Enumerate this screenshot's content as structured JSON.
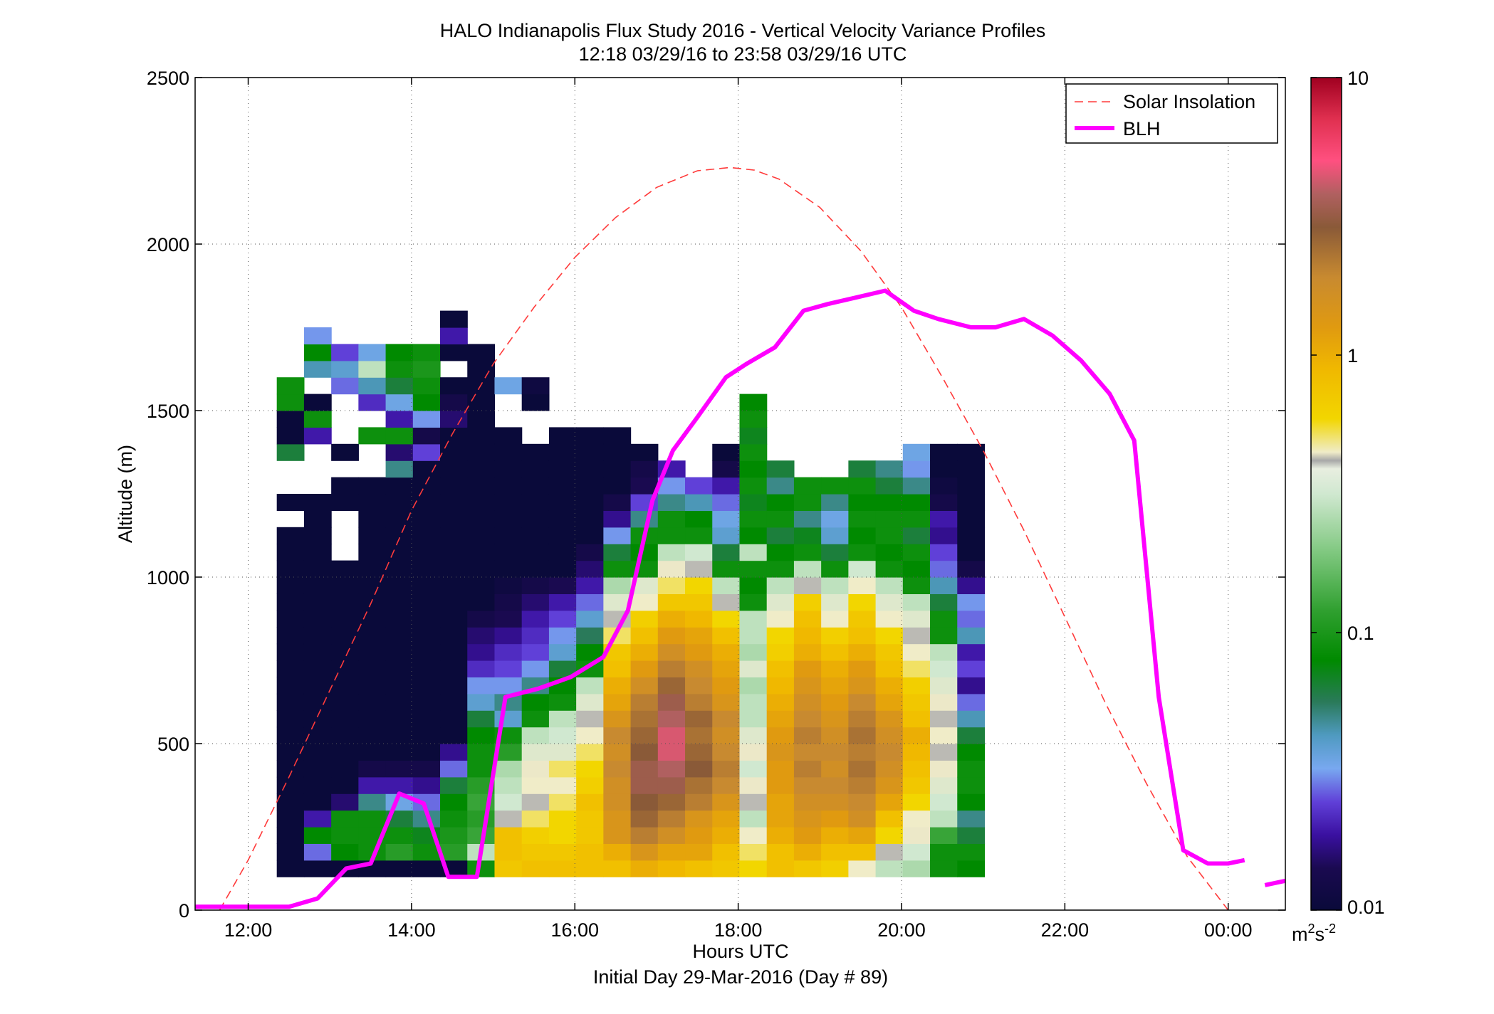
{
  "chart_data": {
    "type": "heatmap",
    "title": "HALO Indianapolis Flux Study 2016 - Vertical Velocity Variance Profiles",
    "subtitle": "12:18 03/29/16 to 23:58 03/29/16  UTC",
    "xlabel": "Hours UTC",
    "xlabel2": "Initial Day 29-Mar-2016 (Day # 89)",
    "ylabel": "Altitude (m)",
    "x_ticks": [
      "12:00",
      "14:00",
      "16:00",
      "18:00",
      "20:00",
      "22:00",
      "00:00"
    ],
    "x_tick_hours": [
      12,
      14,
      16,
      18,
      20,
      22,
      24
    ],
    "xlim_hours": [
      11.35,
      24.7
    ],
    "ylim": [
      0,
      2500
    ],
    "y_ticks": [
      0,
      500,
      1000,
      1500,
      2000,
      2500
    ],
    "grid": true,
    "colorbar": {
      "scale": "log",
      "min": 0.01,
      "max": 10,
      "ticks": [
        0.01,
        0.1,
        1,
        10
      ],
      "tick_labels": [
        "0.01",
        "0.1",
        "1",
        "10"
      ],
      "unit_base": "m",
      "unit_sup1": "2",
      "unit_mid": "s",
      "unit_sup2": "-2"
    },
    "legend": {
      "position": "top-right",
      "entries": [
        "Solar Insolation",
        "BLH"
      ]
    },
    "heatmap": {
      "x_start_hour": 12.35,
      "x_step_hour": 0.3333,
      "y_start_m": 100,
      "y_step_m": 50,
      "log10_variance_columns": [
        [
          -2,
          -2,
          -2,
          -2,
          -2,
          -2,
          -2,
          -2,
          -2,
          -2,
          -2,
          -2,
          -2,
          -2,
          -2,
          -2,
          -2,
          -2,
          -2,
          -2,
          -2,
          null,
          -2,
          null,
          null,
          -1.2,
          -2,
          -2,
          -1.05,
          -1.05
        ],
        [
          -2,
          -1.55,
          -1.1,
          -1.7,
          -2,
          -2,
          -2,
          -2,
          -2,
          -2,
          -2,
          -2,
          -2,
          -2,
          -2,
          -2,
          -2,
          -2,
          -2,
          -2,
          -2,
          -2,
          -2,
          null,
          null,
          null,
          -1.7,
          -1.05,
          -2,
          null,
          -1.35,
          -1.1,
          -1.5
        ],
        [
          -2,
          -1.1,
          -1.05,
          -1.05,
          -1.8,
          -2,
          -2,
          -2,
          -2,
          -2,
          -2,
          -2,
          -2,
          -2,
          -2,
          -2,
          -2,
          -2,
          -2,
          null,
          null,
          null,
          -2,
          -2,
          null,
          -2,
          null,
          null,
          null,
          -1.55,
          -1.4,
          -1.6
        ],
        [
          -2,
          -1.05,
          -1.05,
          -1.05,
          -1.3,
          -1.7,
          -1.9,
          -2,
          -2,
          -2,
          -2,
          -2,
          -2,
          -2,
          -2,
          -2,
          -2,
          -2,
          -2,
          -2,
          -2,
          -2,
          -2,
          -2,
          null,
          null,
          -1.05,
          null,
          -1.65,
          -1.35,
          -0.55,
          -1.45
        ],
        [
          -2,
          -0.95,
          -1.05,
          -1.2,
          -1.45,
          -1.7,
          -1.9,
          -2,
          -2,
          -2,
          -2,
          -2,
          -2,
          -2,
          -2,
          -2,
          -2,
          -2,
          -2,
          -2,
          -2,
          -2,
          -2,
          -2,
          -1.3,
          -1.8,
          -1.05,
          -1.7,
          -1.45,
          -1.2,
          -1.05,
          -1.1
        ],
        [
          -2,
          -1.05,
          -1.15,
          -1.3,
          -1.55,
          -1.75,
          -1.9,
          -2,
          -2,
          -2,
          -2,
          -2,
          -2,
          -2,
          -2,
          -2,
          -2,
          -2,
          -2,
          -2,
          -2,
          -2,
          -2,
          -2,
          -2,
          -1.6,
          -1.9,
          -1.5,
          -1.1,
          -1.05,
          -1.0,
          -1.05
        ],
        [
          -2,
          -0.95,
          -1.0,
          -1.05,
          -1.1,
          -1.2,
          -1.55,
          -1.75,
          -2,
          -2,
          -2,
          -2,
          -2,
          -2,
          -2,
          -2,
          -2,
          -2,
          -2,
          -2,
          -2,
          -2,
          -2,
          -2,
          -2,
          -2,
          -2,
          -1.8,
          -1.9,
          -2,
          null,
          -2,
          -1.7,
          -2
        ],
        [
          -1.05,
          -0.55,
          -0.9,
          -0.95,
          -0.9,
          -0.95,
          -1.05,
          -1.05,
          -1.1,
          -1.2,
          -1.4,
          -1.5,
          -1.65,
          -1.75,
          -1.8,
          -1.9,
          -2,
          -2,
          -2,
          -2,
          -2,
          -2,
          -2,
          -2,
          -2,
          -2,
          -2,
          -2,
          -2,
          -2,
          -2,
          -2
        ],
        [
          -0.1,
          -0.05,
          -0.05,
          -0.35,
          -0.5,
          -0.55,
          -0.6,
          -0.95,
          -1.05,
          -1.4,
          -1.3,
          -1.5,
          -1.6,
          -1.65,
          -1.75,
          -1.85,
          -1.9,
          -1.95,
          -2,
          -2,
          -2,
          -2,
          -2,
          -2,
          -2,
          -2,
          -2,
          null,
          null,
          -1.45
        ],
        [
          -0.05,
          -0.1,
          -0.15,
          -0.25,
          -0.35,
          -0.3,
          -0.4,
          -0.45,
          -0.55,
          -1.05,
          -1.1,
          -1.3,
          -1.5,
          -1.6,
          -1.65,
          -1.7,
          -1.8,
          -1.9,
          -2,
          -2,
          -2,
          -2,
          -2,
          -2,
          -2,
          -2,
          null,
          null,
          -2,
          -1.95
        ],
        [
          -0.05,
          -0.1,
          -0.2,
          -0.2,
          -0.25,
          -0.3,
          -0.25,
          -0.45,
          -0.5,
          -0.55,
          -1.05,
          -1.1,
          -1.2,
          -1.4,
          -1.5,
          -1.6,
          -1.7,
          -1.85,
          -2,
          -2,
          -2,
          -2,
          -2,
          -2,
          -2,
          -2,
          -2
        ],
        [
          -0.05,
          -0.05,
          -0.1,
          -0.1,
          -0.05,
          -0.15,
          -0.2,
          -0.25,
          -0.3,
          -0.35,
          -0.45,
          -0.55,
          -1.05,
          -1.1,
          -1.25,
          -1.4,
          -1.55,
          -1.7,
          -1.8,
          -1.9,
          -2,
          -2,
          -2,
          -2,
          -2,
          -2,
          -2
        ],
        [
          -0.05,
          0.05,
          0.2,
          0.2,
          0.25,
          0.25,
          0.3,
          0.25,
          0.3,
          0.2,
          0.1,
          0.05,
          -0.05,
          -0.1,
          -0.25,
          -0.35,
          -0.45,
          -0.6,
          -1.05,
          -1.2,
          -1.5,
          -1.75,
          -1.9,
          -2,
          -2,
          -2,
          -2
        ],
        [
          0.05,
          0.2,
          0.35,
          0.45,
          0.5,
          0.55,
          0.55,
          0.5,
          0.45,
          0.4,
          0.35,
          0.25,
          0.15,
          0.05,
          -0.05,
          -0.15,
          -0.3,
          -0.45,
          -1.05,
          -1.1,
          -1.05,
          -1.3,
          -1.6,
          -1.85,
          -1.9,
          -2
        ],
        [
          0.0,
          0.1,
          0.25,
          0.35,
          0.45,
          0.55,
          0.6,
          0.65,
          0.65,
          0.6,
          0.55,
          0.45,
          0.35,
          0.25,
          0.15,
          0.05,
          -0.1,
          -0.25,
          -0.4,
          -0.55,
          -1.05,
          -1.05,
          -1.3,
          -1.5,
          -1.7
        ],
        [
          -0.05,
          0.1,
          0.15,
          0.2,
          0.35,
          0.4,
          0.5,
          0.45,
          0.4,
          0.45,
          0.35,
          0.3,
          0.25,
          0.15,
          0.1,
          0.0,
          -0.1,
          -0.2,
          -0.35,
          -0.5,
          -1.05,
          -1.1,
          -1.35,
          -1.6
        ],
        [
          -0.1,
          -0.05,
          0.05,
          0.1,
          0.2,
          0.3,
          0.35,
          0.3,
          0.25,
          0.3,
          0.2,
          0.15,
          0.1,
          0.05,
          -0.05,
          -0.2,
          -0.35,
          -0.55,
          -1.05,
          -1.2,
          -1.4,
          -1.45,
          -1.55,
          -1.7,
          -1.9,
          -2
        ],
        [
          -0.2,
          -0.25,
          -0.3,
          -0.55,
          -0.35,
          -0.4,
          -0.5,
          -0.4,
          -0.45,
          -0.55,
          -0.55,
          -0.6,
          -0.45,
          -0.6,
          -0.55,
          -0.55,
          -1.05,
          -1.1,
          -1.05,
          -0.55,
          -1.1,
          -1.05,
          -1.15,
          -1.05,
          -1.1,
          -1.05,
          -1.15,
          -1.05,
          -1.1
        ],
        [
          -0.05,
          -0.05,
          0.05,
          0.1,
          0.1,
          0.15,
          0.15,
          0.2,
          0.15,
          0.1,
          0.05,
          0.0,
          -0.05,
          -0.15,
          -0.2,
          -0.3,
          -0.45,
          -0.55,
          -1.05,
          -1.1,
          -1.2,
          -1.05,
          -1.1,
          -1.3,
          -1.2
        ],
        [
          -0.1,
          0.05,
          0.15,
          0.2,
          0.25,
          0.3,
          0.35,
          0.3,
          0.35,
          0.3,
          0.25,
          0.2,
          0.15,
          0.05,
          0.0,
          -0.05,
          -0.15,
          -0.35,
          -0.55,
          -1.05,
          -1.15,
          -1.3,
          -1.05,
          -1.05
        ],
        [
          -0.15,
          -0.05,
          0.05,
          0.15,
          0.25,
          0.3,
          0.25,
          0.3,
          0.25,
          0.2,
          0.15,
          0.1,
          0.05,
          -0.05,
          -0.15,
          -0.3,
          -0.45,
          -0.55,
          -1.05,
          -1.2,
          -1.4,
          -1.45,
          -1.3,
          -1.05
        ],
        [
          -0.3,
          -0.05,
          0.1,
          0.25,
          0.3,
          0.35,
          0.4,
          0.35,
          0.4,
          0.35,
          0.3,
          0.2,
          0.15,
          0.05,
          -0.05,
          -0.1,
          -0.2,
          -0.3,
          -0.5,
          -1.05,
          -1.1,
          -1.05,
          -1.1,
          -1.05,
          -1.2
        ],
        [
          -0.55,
          -0.35,
          -0.2,
          -0.05,
          0.1,
          0.2,
          0.25,
          0.3,
          0.25,
          0.2,
          0.1,
          0.05,
          -0.05,
          -0.1,
          -0.2,
          -0.3,
          -0.45,
          -0.55,
          -1.05,
          -1.1,
          -1.05,
          -1.05,
          -1.1,
          -1.2,
          -1.3
        ],
        [
          -0.6,
          -0.5,
          -0.4,
          -0.3,
          -0.2,
          -0.1,
          -0.05,
          0.0,
          0.05,
          -0.05,
          -0.1,
          -0.15,
          -0.25,
          -0.3,
          -0.35,
          -0.45,
          -0.55,
          -1.05,
          -1.1,
          -1.05,
          -1.2,
          -1.05,
          -1.1,
          -1.3,
          -1.5,
          -1.45
        ],
        [
          -1.05,
          -1.05,
          -0.9,
          -0.55,
          -0.5,
          -0.45,
          -0.4,
          -0.35,
          -0.3,
          -0.35,
          -0.4,
          -0.45,
          -0.5,
          -0.55,
          -1.05,
          -1.05,
          -1.2,
          -1.35,
          -1.55,
          -1.6,
          -1.75,
          -1.7,
          -1.9,
          -1.95,
          -2,
          -2
        ],
        [
          -1.1,
          -1.05,
          -1.2,
          -1.3,
          -1.1,
          -1.05,
          -1.05,
          -1.1,
          -1.2,
          -1.35,
          -1.55,
          -1.75,
          -1.6,
          -1.7,
          -1.35,
          -1.55,
          -1.5,
          -1.75,
          -1.9,
          -2,
          -2,
          -2,
          -2,
          -2,
          -2,
          -2
        ]
      ]
    },
    "series": [
      {
        "name": "BLH",
        "color": "#ff00ff",
        "x_hours": [
          11.35,
          12.5,
          12.85,
          13.2,
          13.5,
          13.85,
          14.15,
          14.45,
          14.8,
          15.15,
          15.55,
          15.95,
          16.35,
          16.65,
          16.95,
          17.2,
          17.5,
          17.85,
          18.1,
          18.45,
          18.8,
          19.1,
          19.45,
          19.8,
          20.15,
          20.45,
          20.85,
          21.15,
          21.5,
          21.85,
          22.2,
          22.55,
          22.85,
          23.15,
          23.45,
          23.75,
          24.0,
          24.2
        ],
        "values": [
          10,
          10,
          35,
          125,
          140,
          350,
          320,
          100,
          100,
          640,
          665,
          700,
          760,
          900,
          1230,
          1380,
          1480,
          1600,
          1640,
          1690,
          1800,
          1820,
          1840,
          1860,
          1800,
          1775,
          1750,
          1750,
          1775,
          1725,
          1650,
          1550,
          1410,
          640,
          180,
          140,
          140,
          150
        ]
      },
      {
        "name": "BLH",
        "x_hours": [
          24.45,
          24.7
        ],
        "values": [
          75,
          88
        ]
      },
      {
        "name": "Solar Insolation",
        "color": "#ff3b3b",
        "x_hours": [
          11.65,
          12.0,
          12.5,
          13.0,
          13.5,
          14.0,
          14.5,
          15.0,
          15.5,
          16.0,
          16.5,
          17.0,
          17.5,
          17.9,
          18.2,
          18.5,
          19.0,
          19.5,
          20.0,
          20.5,
          21.0,
          21.5,
          22.0,
          22.5,
          23.0,
          23.5,
          24.0
        ],
        "values": [
          0,
          150,
          400,
          660,
          920,
          1200,
          1430,
          1640,
          1810,
          1960,
          2080,
          2170,
          2220,
          2230,
          2222,
          2195,
          2110,
          1980,
          1810,
          1600,
          1380,
          1140,
          880,
          620,
          380,
          160,
          0
        ]
      }
    ]
  }
}
